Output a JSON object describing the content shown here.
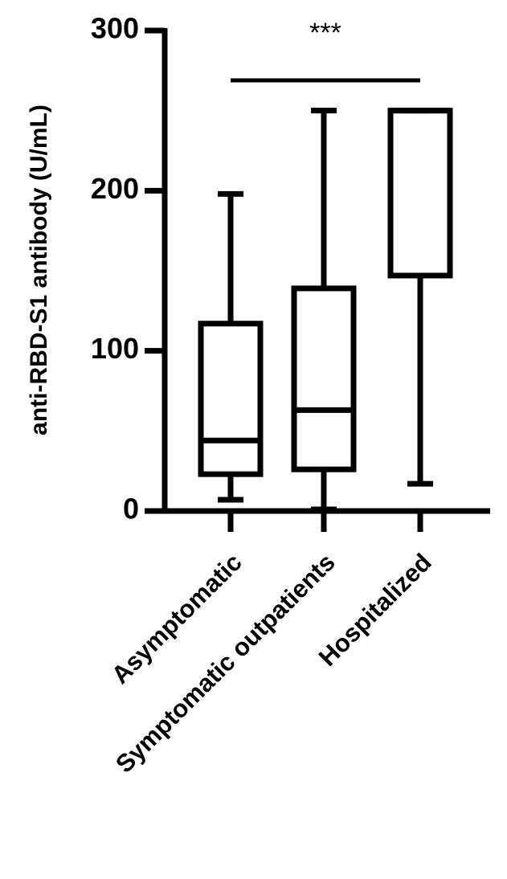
{
  "chart_data": {
    "type": "box",
    "y_label": "anti-RBD-S1 antibody (U/mL)",
    "annotation": "***",
    "categories": [
      "Asymptomatic",
      "Symptomatic outpatients",
      "Hospitalized"
    ],
    "boxes": [
      {
        "min": 7,
        "q1": 23,
        "median": 44,
        "q3": 117,
        "max": 198
      },
      {
        "min": 1,
        "q1": 26,
        "median": 63,
        "q3": 139,
        "max": 250
      },
      {
        "min": 17,
        "q1": 147,
        "median": 250,
        "q3": 250,
        "max": 250
      }
    ],
    "color": "#000000",
    "ylim": [
      0,
      300
    ],
    "yticks": [
      0,
      100,
      200,
      300
    ]
  }
}
